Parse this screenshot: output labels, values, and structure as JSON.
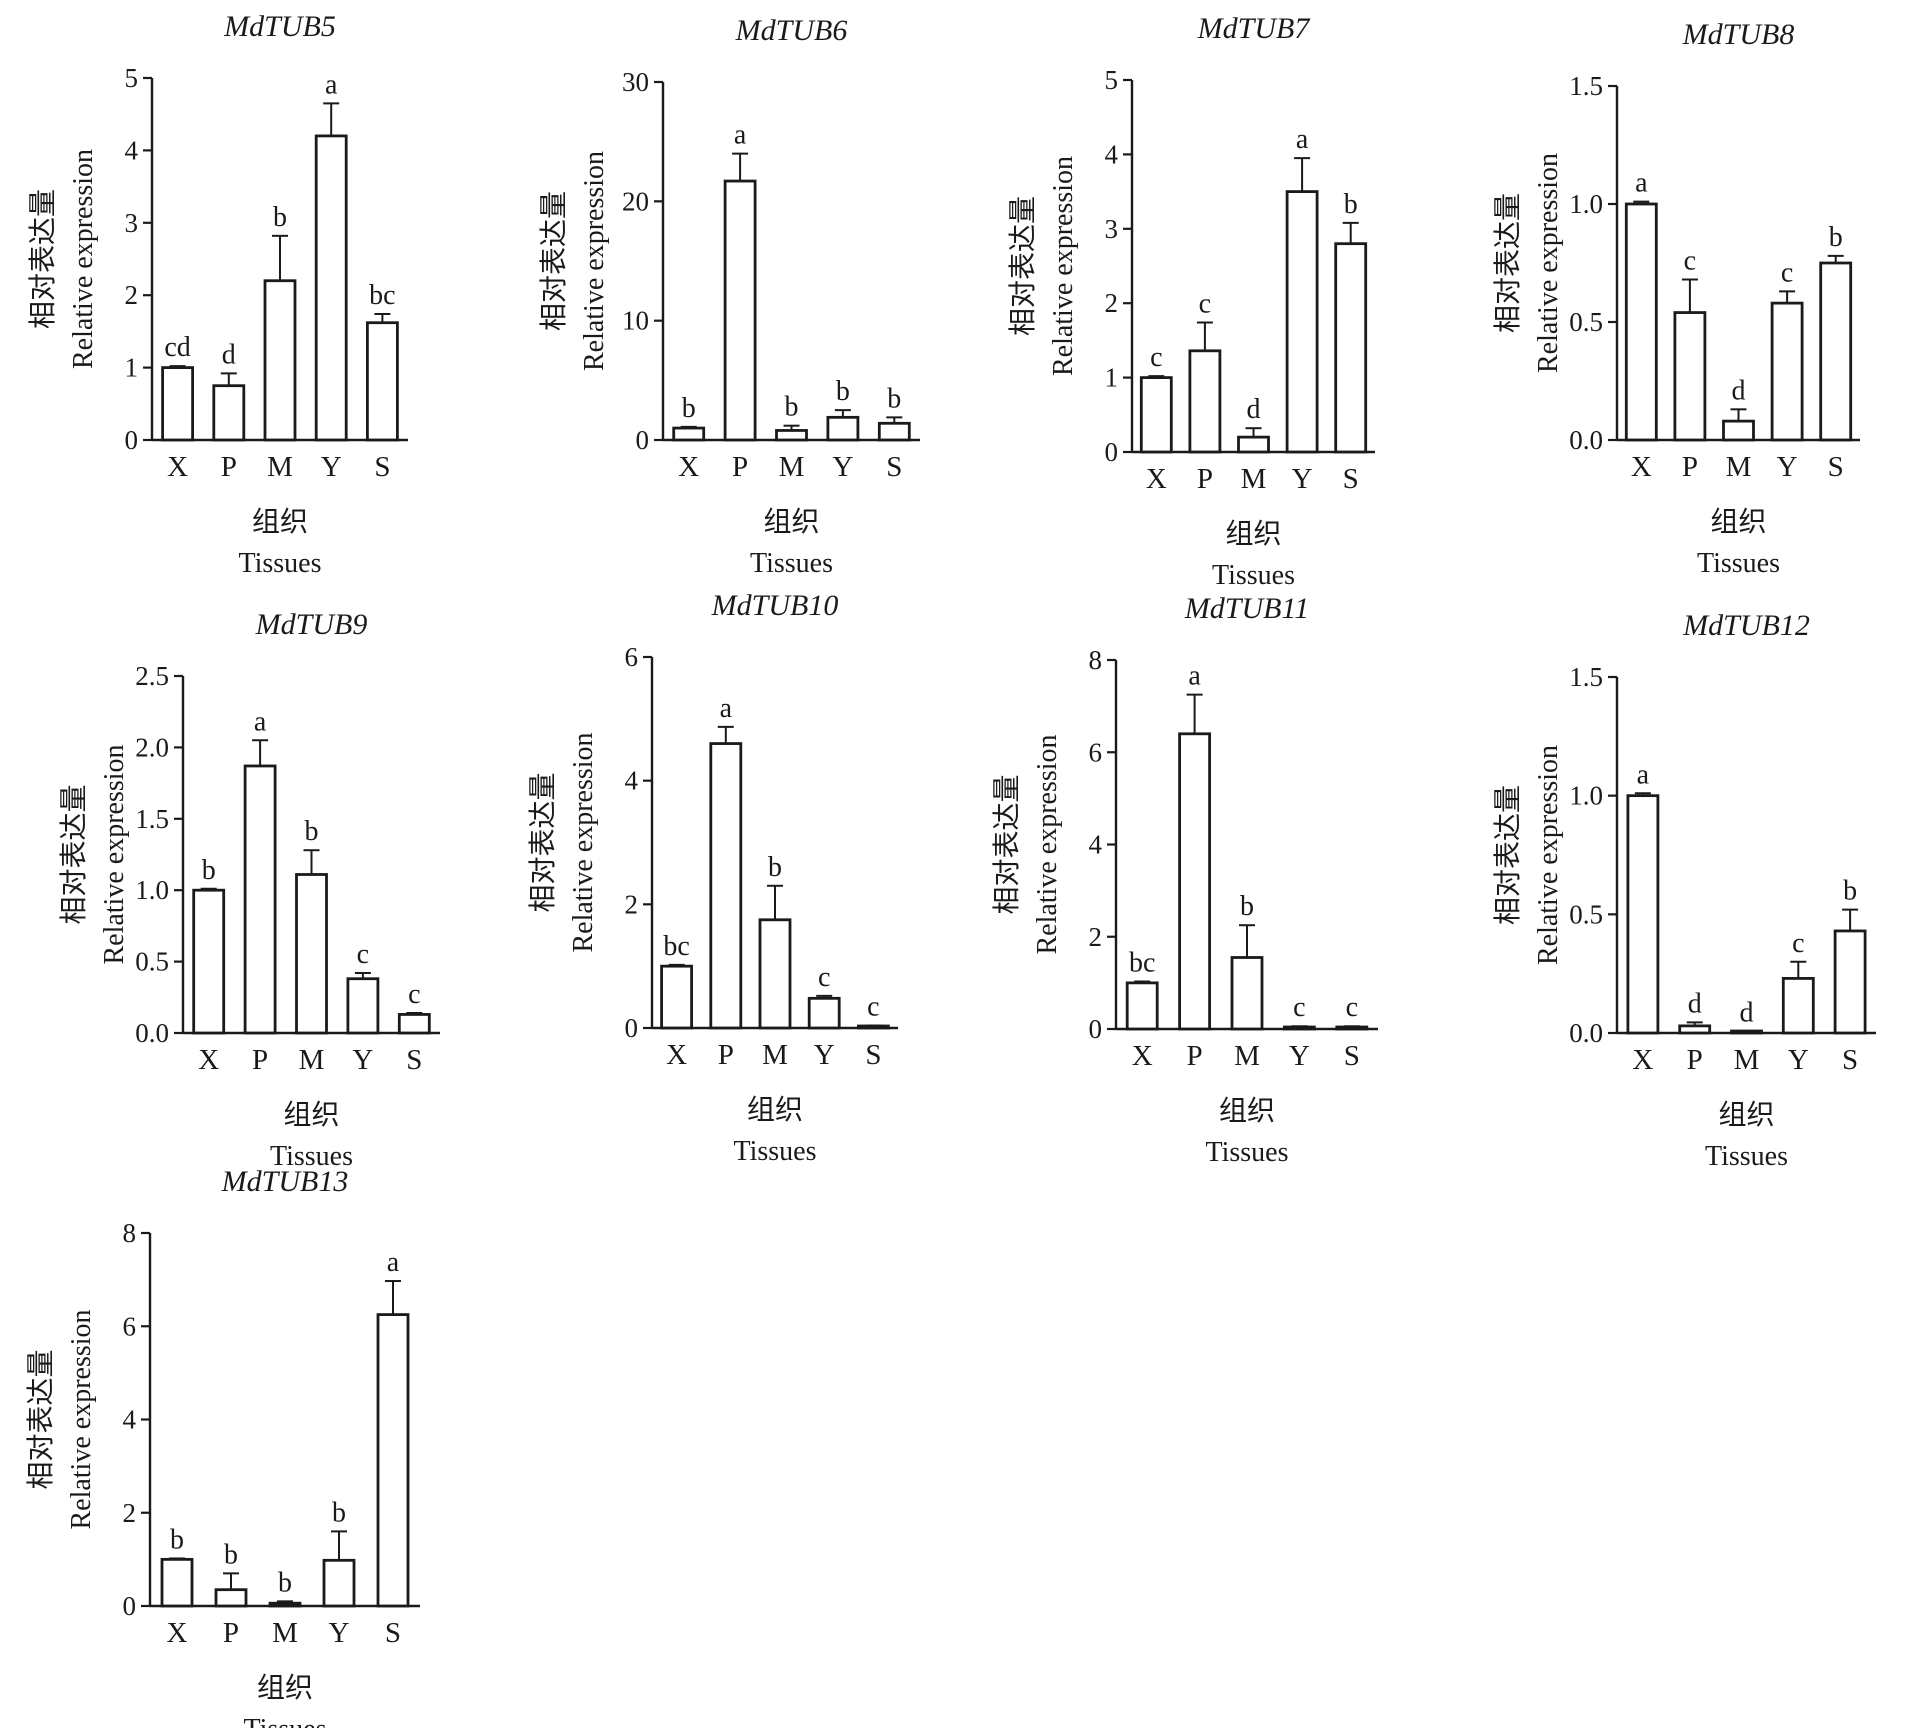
{
  "chart_data": [
    {
      "type": "bar",
      "title": "MdTUB5",
      "ylabel_cn": "相对表达量",
      "ylabel": "Relative expression",
      "xlabel_cn": "组织",
      "xlabel": "Tissues",
      "categories": [
        "X",
        "P",
        "M",
        "Y",
        "S"
      ],
      "values": [
        1.0,
        0.75,
        2.2,
        4.2,
        1.62
      ],
      "errors": [
        0.02,
        0.17,
        0.62,
        0.45,
        0.12
      ],
      "significance": [
        "cd",
        "d",
        "b",
        "a",
        "bc"
      ],
      "ylim": [
        0,
        5
      ],
      "yticks": [
        0,
        1,
        2,
        3,
        4,
        5
      ],
      "ytick_labels": [
        "0",
        "1",
        "2",
        "3",
        "4",
        "5"
      ]
    },
    {
      "type": "bar",
      "title": "MdTUB6",
      "ylabel_cn": "相对表达量",
      "ylabel": "Relative expression",
      "xlabel_cn": "组织",
      "xlabel": "Tissues",
      "categories": [
        "X",
        "P",
        "M",
        "Y",
        "S"
      ],
      "values": [
        1.0,
        21.7,
        0.8,
        1.9,
        1.4
      ],
      "errors": [
        0.1,
        2.3,
        0.4,
        0.6,
        0.5
      ],
      "significance": [
        "b",
        "a",
        "b",
        "b",
        "b"
      ],
      "ylim": [
        0,
        30
      ],
      "yticks": [
        0,
        10,
        20,
        30
      ],
      "ytick_labels": [
        "0",
        "10",
        "20",
        "30"
      ]
    },
    {
      "type": "bar",
      "title": "MdTUB7",
      "ylabel_cn": "相对表达量",
      "ylabel": "Relative expression",
      "xlabel_cn": "组织",
      "xlabel": "Tissues",
      "categories": [
        "X",
        "P",
        "M",
        "Y",
        "S"
      ],
      "values": [
        1.0,
        1.36,
        0.2,
        3.5,
        2.8
      ],
      "errors": [
        0.02,
        0.38,
        0.12,
        0.45,
        0.28
      ],
      "significance": [
        "c",
        "c",
        "d",
        "a",
        "b"
      ],
      "ylim": [
        0,
        5
      ],
      "yticks": [
        0,
        1,
        2,
        3,
        4,
        5
      ],
      "ytick_labels": [
        "0",
        "1",
        "2",
        "3",
        "4",
        "5"
      ]
    },
    {
      "type": "bar",
      "title": "MdTUB8",
      "ylabel_cn": "相对表达量",
      "ylabel": "Relative expression",
      "xlabel_cn": "组织",
      "xlabel": "Tissues",
      "categories": [
        "X",
        "P",
        "M",
        "Y",
        "S"
      ],
      "values": [
        1.0,
        0.54,
        0.08,
        0.58,
        0.75
      ],
      "errors": [
        0.01,
        0.14,
        0.05,
        0.05,
        0.03
      ],
      "significance": [
        "a",
        "c",
        "d",
        "c",
        "b"
      ],
      "ylim": [
        0,
        1.5
      ],
      "yticks": [
        0,
        0.5,
        1.0,
        1.5
      ],
      "ytick_labels": [
        "0.0",
        "0.5",
        "1.0",
        "1.5"
      ]
    },
    {
      "type": "bar",
      "title": "MdTUB9",
      "ylabel_cn": "相对表达量",
      "ylabel": "Relative expression",
      "xlabel_cn": "组织",
      "xlabel": "Tissues",
      "categories": [
        "X",
        "P",
        "M",
        "Y",
        "S"
      ],
      "values": [
        1.0,
        1.87,
        1.11,
        0.38,
        0.13
      ],
      "errors": [
        0.01,
        0.18,
        0.17,
        0.04,
        0.01
      ],
      "significance": [
        "b",
        "a",
        "b",
        "c",
        "c"
      ],
      "ylim": [
        0,
        2.5
      ],
      "yticks": [
        0,
        0.5,
        1.0,
        1.5,
        2.0,
        2.5
      ],
      "ytick_labels": [
        "0.0",
        "0.5",
        "1.0",
        "1.5",
        "2.0",
        "2.5"
      ]
    },
    {
      "type": "bar",
      "title": "MdTUB10",
      "ylabel_cn": "相对表达量",
      "ylabel": "Relative expression",
      "xlabel_cn": "组织",
      "xlabel": "Tissues",
      "categories": [
        "X",
        "P",
        "M",
        "Y",
        "S"
      ],
      "values": [
        1.0,
        4.6,
        1.75,
        0.48,
        0.03
      ],
      "errors": [
        0.02,
        0.27,
        0.55,
        0.04,
        0.01
      ],
      "significance": [
        "bc",
        "a",
        "b",
        "c",
        "c"
      ],
      "ylim": [
        0,
        6
      ],
      "yticks": [
        0,
        2,
        4,
        6
      ],
      "ytick_labels": [
        "0",
        "2",
        "4",
        "6"
      ]
    },
    {
      "type": "bar",
      "title": "MdTUB11",
      "ylabel_cn": "相对表达量",
      "ylabel": "Relative expression",
      "xlabel_cn": "组织",
      "xlabel": "Tissues",
      "categories": [
        "X",
        "P",
        "M",
        "Y",
        "S"
      ],
      "values": [
        1.0,
        6.4,
        1.55,
        0.04,
        0.04
      ],
      "errors": [
        0.03,
        0.85,
        0.7,
        0.02,
        0.02
      ],
      "significance": [
        "bc",
        "a",
        "b",
        "c",
        "c"
      ],
      "ylim": [
        0,
        8
      ],
      "yticks": [
        0,
        2,
        4,
        6,
        8
      ],
      "ytick_labels": [
        "0",
        "2",
        "4",
        "6",
        "8"
      ]
    },
    {
      "type": "bar",
      "title": "MdTUB12",
      "ylabel_cn": "相对表达量",
      "ylabel": "Relative expression",
      "xlabel_cn": "组织",
      "xlabel": "Tissues",
      "categories": [
        "X",
        "P",
        "M",
        "Y",
        "S"
      ],
      "values": [
        1.0,
        0.03,
        0.005,
        0.23,
        0.43
      ],
      "errors": [
        0.01,
        0.015,
        0.002,
        0.07,
        0.09
      ],
      "significance": [
        "a",
        "d",
        "d",
        "c",
        "b"
      ],
      "ylim": [
        0,
        1.5
      ],
      "yticks": [
        0,
        0.5,
        1.0,
        1.5
      ],
      "ytick_labels": [
        "0.0",
        "0.5",
        "1.0",
        "1.5"
      ]
    },
    {
      "type": "bar",
      "title": "MdTUB13",
      "ylabel_cn": "相对表达量",
      "ylabel": "Relative expression",
      "xlabel_cn": "组织",
      "xlabel": "Tissues",
      "categories": [
        "X",
        "P",
        "M",
        "Y",
        "S"
      ],
      "values": [
        1.0,
        0.35,
        0.06,
        0.98,
        6.25
      ],
      "errors": [
        0.02,
        0.35,
        0.04,
        0.62,
        0.72
      ],
      "significance": [
        "b",
        "b",
        "b",
        "b",
        "a"
      ],
      "ylim": [
        0,
        8
      ],
      "yticks": [
        0,
        2,
        4,
        6,
        8
      ],
      "ytick_labels": [
        "0",
        "2",
        "4",
        "6",
        "8"
      ]
    }
  ],
  "colors": {
    "ink": "#1a1a1a",
    "bar_fill": "#ffffff",
    "background": "#ffffff"
  }
}
